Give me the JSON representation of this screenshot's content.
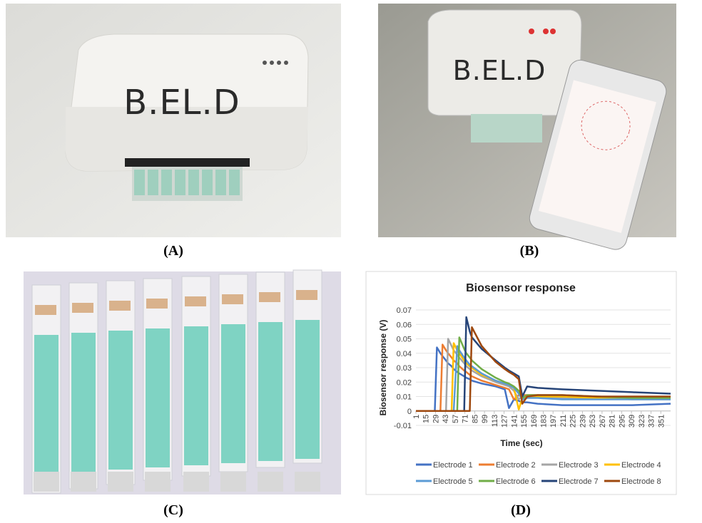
{
  "panels": [
    {
      "label": "(A)"
    },
    {
      "label": "(B)"
    },
    {
      "label": "(C)"
    },
    {
      "label": "(D)"
    }
  ],
  "photo_a": {
    "device_label": "B.EL.D"
  },
  "photo_b": {
    "device_label": "B.EL.D"
  },
  "chart_data": {
    "type": "line",
    "title": "Biosensor response",
    "x_label": "Time (sec)",
    "y_label": "Biosensor response (V)",
    "x": [
      1,
      28,
      31,
      36,
      39,
      44,
      47,
      52,
      55,
      60,
      63,
      70,
      73,
      78,
      81,
      95,
      115,
      128,
      134,
      141,
      148,
      153,
      160,
      175,
      210,
      260,
      310,
      365
    ],
    "xlim": [
      1,
      365
    ],
    "xticks": [
      1,
      15,
      29,
      43,
      57,
      71,
      85,
      99,
      113,
      127,
      141,
      155,
      169,
      183,
      197,
      211,
      225,
      239,
      253,
      267,
      281,
      295,
      309,
      323,
      337,
      351
    ],
    "ylim": [
      -0.01,
      0.07
    ],
    "yticks": [
      -0.01,
      0,
      0.01,
      0.02,
      0.03,
      0.04,
      0.05,
      0.06,
      0.07
    ],
    "grid": true,
    "legend": "bottom",
    "series": [
      {
        "name": "Electrode 1",
        "color": "#4472c4",
        "values": [
          0,
          0,
          0.044,
          0.04,
          0.038,
          0.035,
          0.033,
          0.031,
          0.029,
          0.027,
          0.026,
          0.024,
          0.023,
          0.022,
          0.021,
          0.019,
          0.017,
          0.015,
          0.002,
          0.008,
          0.007,
          0.006,
          0.006,
          0.005,
          0.004,
          0.004,
          0.004,
          0.005
        ]
      },
      {
        "name": "Electrode 2",
        "color": "#ed7d31",
        "values": [
          0,
          0,
          0,
          0,
          0.046,
          0.042,
          0.04,
          0.037,
          0.035,
          0.033,
          0.031,
          0.028,
          0.027,
          0.025,
          0.024,
          0.021,
          0.018,
          0.016,
          0.015,
          0.008,
          0.011,
          0.011,
          0.011,
          0.011,
          0.01,
          0.01,
          0.009,
          0.009
        ]
      },
      {
        "name": "Electrode 3",
        "color": "#a5a5a5",
        "values": [
          0,
          0,
          0,
          0,
          0,
          0,
          0.05,
          0.045,
          0.042,
          0.039,
          0.037,
          0.033,
          0.031,
          0.029,
          0.028,
          0.024,
          0.02,
          0.018,
          0.017,
          0.014,
          0.008,
          0.01,
          0.01,
          0.01,
          0.009,
          0.009,
          0.008,
          0.008
        ]
      },
      {
        "name": "Electrode 4",
        "color": "#ffc000",
        "values": [
          0,
          0,
          0,
          0,
          0,
          0,
          0,
          0,
          0.047,
          0.042,
          0.04,
          0.035,
          0.033,
          0.031,
          0.03,
          0.025,
          0.021,
          0.019,
          0.018,
          0.016,
          0.001,
          0.009,
          0.01,
          0.01,
          0.01,
          0.009,
          0.009,
          0.009
        ]
      },
      {
        "name": "Electrode 5",
        "color": "#5b9bd5",
        "values": [
          0,
          0,
          0,
          0,
          0,
          0,
          0,
          0,
          0,
          0.045,
          0.042,
          0.037,
          0.035,
          0.032,
          0.031,
          0.026,
          0.021,
          0.019,
          0.018,
          0.016,
          0.012,
          0.008,
          0.009,
          0.009,
          0.008,
          0.008,
          0.008,
          0.008
        ]
      },
      {
        "name": "Electrode 6",
        "color": "#70ad47",
        "values": [
          0,
          0,
          0,
          0,
          0,
          0,
          0,
          0,
          0,
          0,
          0.051,
          0.043,
          0.04,
          0.037,
          0.035,
          0.029,
          0.023,
          0.02,
          0.019,
          0.017,
          0.014,
          0.009,
          0.011,
          0.011,
          0.011,
          0.01,
          0.009,
          0.009
        ]
      },
      {
        "name": "Electrode 7",
        "color": "#264478",
        "values": [
          0,
          0,
          0,
          0,
          0,
          0,
          0,
          0,
          0,
          0,
          0,
          0,
          0.065,
          0.055,
          0.051,
          0.043,
          0.035,
          0.03,
          0.028,
          0.026,
          0.024,
          0.01,
          0.017,
          0.016,
          0.015,
          0.014,
          0.013,
          0.012
        ]
      },
      {
        "name": "Electrode 8",
        "color": "#9e480e",
        "values": [
          0,
          0,
          0,
          0,
          0,
          0,
          0,
          0,
          0,
          0,
          0,
          0,
          0,
          0,
          0.058,
          0.045,
          0.034,
          0.029,
          0.027,
          0.025,
          0.022,
          0.005,
          0.01,
          0.011,
          0.011,
          0.01,
          0.01,
          0.01
        ]
      }
    ]
  }
}
